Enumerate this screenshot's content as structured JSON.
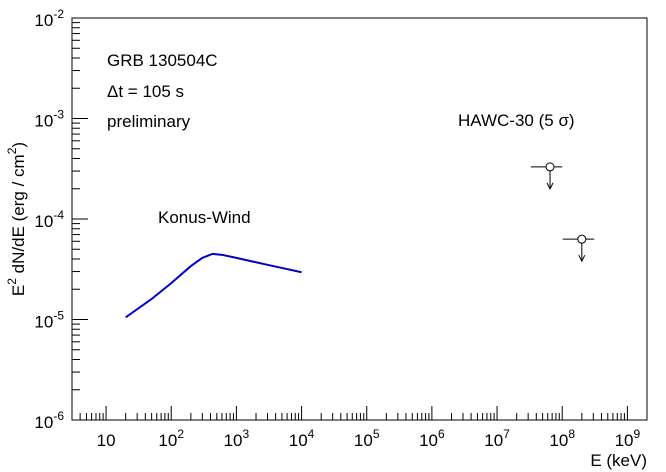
{
  "chart_data": {
    "type": "line",
    "xlabel": "E (keV)",
    "y_label": [
      "E",
      "2",
      " dN/dE (erg / cm",
      "2",
      ")"
    ],
    "annotations": [
      "GRB 130504C",
      "Δt = 105 s",
      "preliminary"
    ],
    "xlog": true,
    "ylog": true,
    "xlim": [
      3,
      2000000000
    ],
    "ylim": [
      1e-06,
      0.01
    ],
    "xticks": [
      10,
      {
        "value": 100,
        "label": "102"
      },
      {
        "value": 1000,
        "label": "103"
      },
      {
        "value": 10000,
        "label": "104"
      },
      {
        "value": 100000,
        "label": "105"
      },
      {
        "value": 1000000,
        "label": "106"
      },
      {
        "value": 10000000,
        "label": "107"
      },
      {
        "value": 100000000,
        "label": "108"
      },
      {
        "value": 1000000000,
        "label": "109"
      }
    ],
    "yticks": [
      {
        "value": 1e-06,
        "label": "10-6"
      },
      {
        "value": 1e-05,
        "label": "10-5"
      },
      {
        "value": 0.0001,
        "label": "10-4"
      },
      {
        "value": 0.001,
        "label": "10-3"
      },
      {
        "value": 0.01,
        "label": "10-2"
      }
    ],
    "series": [
      {
        "name": "Konus-Wind",
        "color": "#0000cc",
        "x": [
          20,
          50,
          100,
          200,
          300,
          430,
          600,
          1000,
          3000,
          10000
        ],
        "values": [
          1.05e-05,
          1.6e-05,
          2.3e-05,
          3.4e-05,
          4.1e-05,
          4.5e-05,
          4.4e-05,
          4.1e-05,
          3.5e-05,
          2.95e-05
        ]
      },
      {
        "name": "HAWC-30 (5 σ)",
        "color": "#000000",
        "upper_limits": [
          {
            "x": 65000000,
            "x_low": 33000000,
            "x_high": 100000000,
            "y": 0.00033
          },
          {
            "x": 200000000,
            "x_low": 102000000,
            "x_high": 310000000,
            "y": 6.3e-05
          }
        ]
      }
    ]
  }
}
